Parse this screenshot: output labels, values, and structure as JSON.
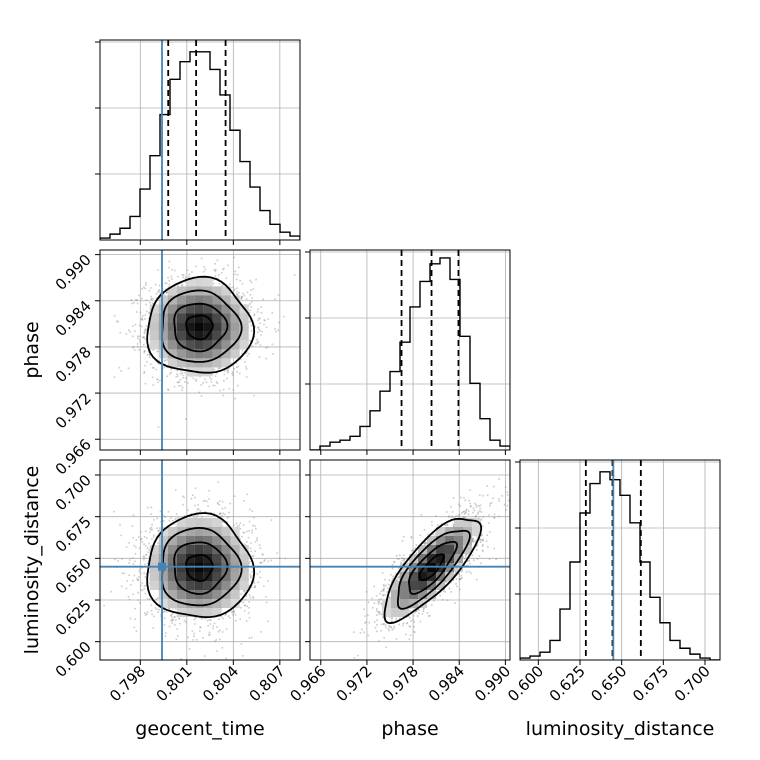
{
  "chart_data": {
    "type": "corner",
    "parameters": [
      "geocent_time",
      "phase",
      "luminosity_distance"
    ],
    "truth_color": "#4682b4",
    "axis_labels": {
      "geocent_time": "geocent_time",
      "phase": "phase",
      "luminosity_distance": "luminosity_distance"
    },
    "ticks": {
      "geocent_time": [
        "0.798",
        "0.801",
        "0.804",
        "0.807"
      ],
      "phase": [
        "0.966",
        "0.972",
        "0.978",
        "0.984",
        "0.990"
      ],
      "luminosity_distance": [
        "0.600",
        "0.625",
        "0.650",
        "0.675",
        "0.700"
      ]
    },
    "ranges": {
      "geocent_time": [
        0.7954,
        0.8083
      ],
      "phase": [
        0.9646,
        0.9906
      ],
      "luminosity_distance": [
        0.589,
        0.709
      ]
    },
    "truths": {
      "geocent_time": 0.7994,
      "phase": null,
      "luminosity_distance": 0.645
    },
    "quantiles": {
      "geocent_time": [
        0.7998,
        0.8016,
        0.8035
      ],
      "phase": [
        0.9765,
        0.9804,
        0.9839
      ],
      "luminosity_distance": [
        0.6285,
        0.6445,
        0.6615
      ]
    },
    "histograms": {
      "geocent_time": [
        0.01,
        0.03,
        0.06,
        0.12,
        0.26,
        0.43,
        0.64,
        0.82,
        0.91,
        0.96,
        0.96,
        0.87,
        0.74,
        0.56,
        0.4,
        0.27,
        0.15,
        0.08,
        0.04,
        0.02
      ],
      "phase": [
        0.0,
        0.02,
        0.04,
        0.05,
        0.07,
        0.12,
        0.2,
        0.3,
        0.4,
        0.55,
        0.73,
        0.86,
        0.95,
        0.98,
        0.87,
        0.58,
        0.34,
        0.16,
        0.05,
        0.02
      ],
      "luminosity_distance": [
        0.01,
        0.02,
        0.04,
        0.1,
        0.26,
        0.5,
        0.75,
        0.9,
        0.96,
        0.92,
        0.84,
        0.7,
        0.5,
        0.32,
        0.19,
        0.1,
        0.06,
        0.03,
        0.01,
        0.0
      ]
    },
    "pairs": [
      {
        "x": "geocent_time",
        "y": "phase",
        "center": [
          0.8018,
          0.9806
        ],
        "sigma": [
          0.0017,
          0.0031
        ],
        "correlation": 0.0
      },
      {
        "x": "geocent_time",
        "y": "luminosity_distance",
        "center": [
          0.8018,
          0.6445
        ],
        "sigma": [
          0.0017,
          0.0155
        ],
        "correlation": 0.0
      },
      {
        "x": "phase",
        "y": "luminosity_distance",
        "center": [
          0.9804,
          0.6445
        ],
        "sigma": [
          0.0031,
          0.0155
        ],
        "correlation": 0.78
      }
    ],
    "grid": true
  }
}
